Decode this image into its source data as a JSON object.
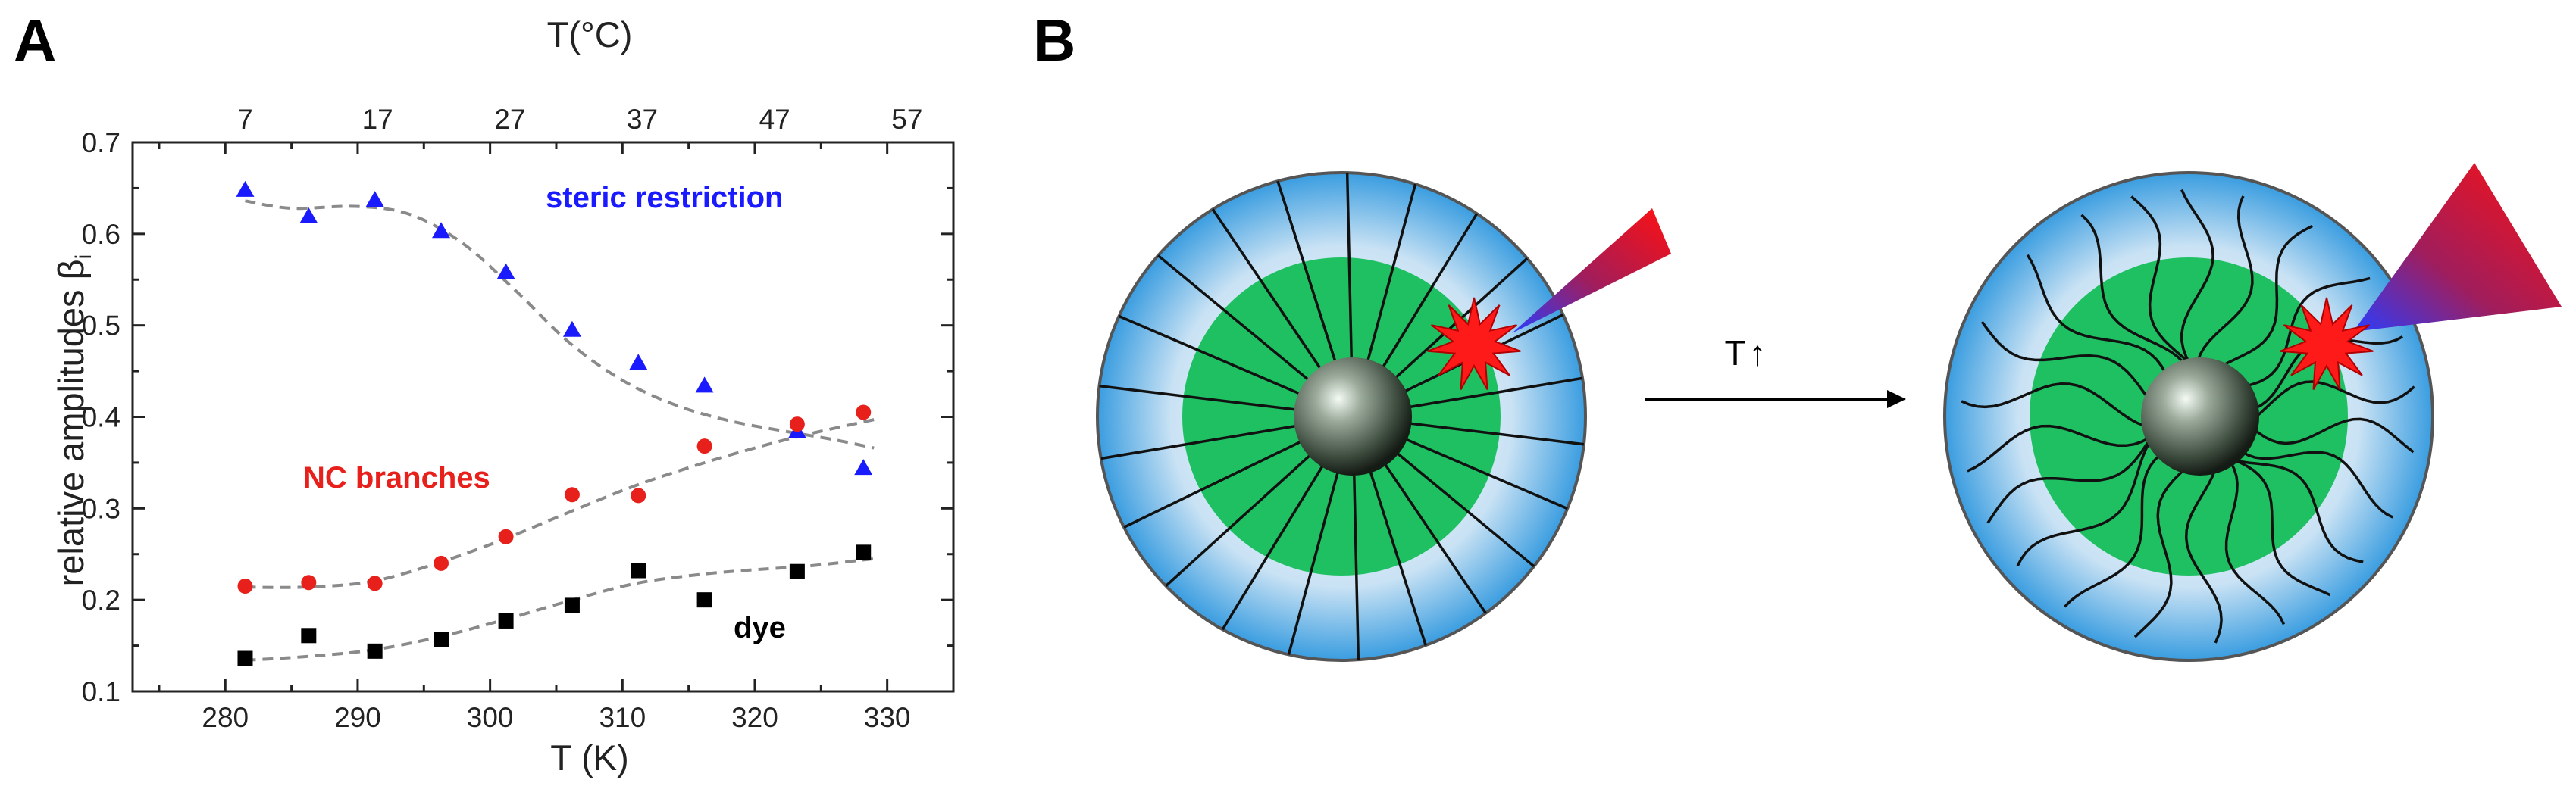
{
  "panels": {
    "a": "A",
    "b": "B"
  },
  "chart_data": {
    "type": "scatter",
    "xlabel": "T (K)",
    "x2label": "T(°C)",
    "ylabel": "relative amplitudes β",
    "ylabel_subscript": "i",
    "xlim": [
      273,
      335
    ],
    "ylim": [
      0.1,
      0.7
    ],
    "x_ticks": [
      280,
      290,
      300,
      310,
      320,
      330
    ],
    "x2_ticks": [
      7,
      17,
      27,
      37,
      47,
      57
    ],
    "y_ticks": [
      0.1,
      0.2,
      0.3,
      0.4,
      0.5,
      0.6,
      0.7
    ],
    "grid": false,
    "series": [
      {
        "name": "steric restriction",
        "marker": "triangle",
        "color": "#1a1aff",
        "x": [
          281.5,
          286.3,
          291.3,
          296.3,
          301.2,
          306.2,
          311.2,
          316.2,
          323.2,
          328.2
        ],
        "y": [
          0.648,
          0.619,
          0.637,
          0.603,
          0.558,
          0.495,
          0.459,
          0.434,
          0.384,
          0.344
        ],
        "fit": [
          [
            281.5,
            0.636
          ],
          [
            285,
            0.628
          ],
          [
            290,
            0.63
          ],
          [
            294,
            0.621
          ],
          [
            298,
            0.589
          ],
          [
            302,
            0.537
          ],
          [
            306,
            0.481
          ],
          [
            310,
            0.44
          ],
          [
            314,
            0.413
          ],
          [
            318,
            0.396
          ],
          [
            322,
            0.385
          ],
          [
            326,
            0.375
          ],
          [
            329,
            0.366
          ]
        ]
      },
      {
        "name": "NC branches",
        "marker": "circle",
        "color": "#e8201c",
        "x": [
          281.5,
          286.3,
          291.3,
          296.3,
          301.2,
          306.2,
          311.2,
          316.2,
          323.2,
          328.2
        ],
        "y": [
          0.215,
          0.219,
          0.218,
          0.24,
          0.269,
          0.315,
          0.314,
          0.368,
          0.392,
          0.405
        ],
        "fit": [
          [
            281.5,
            0.214
          ],
          [
            286,
            0.214
          ],
          [
            291,
            0.22
          ],
          [
            296,
            0.24
          ],
          [
            301,
            0.266
          ],
          [
            306,
            0.296
          ],
          [
            311,
            0.325
          ],
          [
            316,
            0.349
          ],
          [
            320,
            0.366
          ],
          [
            324,
            0.381
          ],
          [
            329,
            0.397
          ]
        ]
      },
      {
        "name": "dye",
        "marker": "square",
        "color": "#000000",
        "x": [
          281.5,
          286.3,
          291.3,
          296.3,
          301.2,
          306.2,
          311.2,
          316.2,
          323.2,
          328.2
        ],
        "y": [
          0.136,
          0.161,
          0.144,
          0.157,
          0.177,
          0.194,
          0.232,
          0.2,
          0.231,
          0.252
        ],
        "fit": [
          [
            281.5,
            0.134
          ],
          [
            286,
            0.138
          ],
          [
            291,
            0.145
          ],
          [
            296,
            0.159
          ],
          [
            301,
            0.178
          ],
          [
            306,
            0.199
          ],
          [
            311,
            0.218
          ],
          [
            316,
            0.228
          ],
          [
            320,
            0.233
          ],
          [
            324,
            0.237
          ],
          [
            329,
            0.245
          ]
        ]
      }
    ]
  },
  "annotations": {
    "steric": {
      "text": "steric restriction",
      "color": "#1a1aff"
    },
    "nc": {
      "text": "NC branches",
      "color": "#e8201c"
    },
    "dye": {
      "text": "dye",
      "color": "#000000"
    }
  },
  "diagram": {
    "arrow_label": "T",
    "arrow_up_glyph": "↑",
    "colors": {
      "shell": "#3a9de0",
      "core_region": "#1fc062",
      "particle": "#5d6d5d",
      "dye": "#ff1a1a",
      "cone": "#e8101a"
    }
  }
}
